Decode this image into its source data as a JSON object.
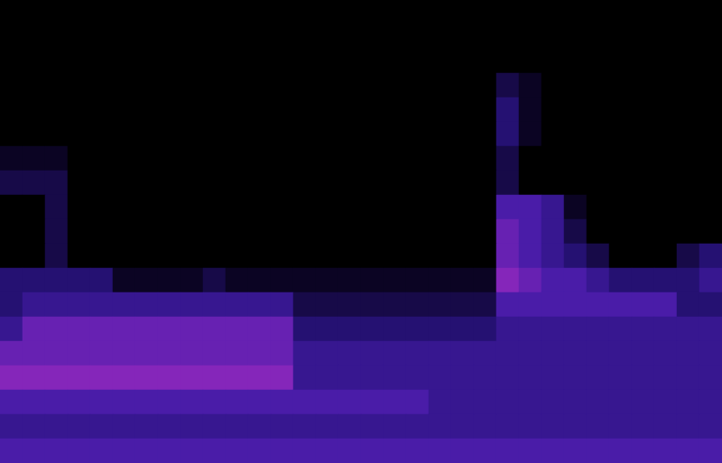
{
  "chart_data": {
    "type": "heatmap",
    "tick_labels": false,
    "grid": false,
    "zlim": [
      0,
      10
    ],
    "cells": [
      [
        0,
        0,
        0,
        0,
        0,
        0,
        0,
        0,
        0,
        0,
        0,
        0,
        0,
        0,
        0,
        0,
        0,
        0,
        0,
        0,
        0,
        0,
        0,
        0,
        0,
        0,
        0,
        0,
        0,
        0,
        0,
        0
      ],
      [
        0,
        0,
        0,
        0,
        0,
        0,
        0,
        0,
        0,
        0,
        0,
        0,
        0,
        0,
        0,
        0,
        0,
        0,
        0,
        0,
        0,
        0,
        0,
        0,
        0,
        0,
        0,
        0,
        0,
        0,
        0,
        0
      ],
      [
        0,
        0,
        0,
        0,
        0,
        0,
        0,
        0,
        0,
        0,
        0,
        0,
        0,
        0,
        0,
        0,
        0,
        0,
        0,
        0,
        0,
        0,
        0,
        0,
        0,
        0,
        0,
        0,
        0,
        0,
        0,
        0
      ],
      [
        0,
        0,
        0,
        0,
        0,
        0,
        0,
        0,
        0,
        0,
        0,
        0,
        0,
        0,
        0,
        0,
        0,
        0,
        0,
        0,
        0,
        0,
        2,
        1,
        0,
        0,
        0,
        0,
        0,
        0,
        0,
        0
      ],
      [
        0,
        0,
        0,
        0,
        0,
        0,
        0,
        0,
        0,
        0,
        0,
        0,
        0,
        0,
        0,
        0,
        0,
        0,
        0,
        0,
        0,
        0,
        3,
        1,
        0,
        0,
        0,
        0,
        0,
        0,
        0,
        0
      ],
      [
        0,
        0,
        0,
        0,
        0,
        0,
        0,
        0,
        0,
        0,
        0,
        0,
        0,
        0,
        0,
        0,
        0,
        0,
        0,
        0,
        0,
        0,
        3,
        1,
        0,
        0,
        0,
        0,
        0,
        0,
        0,
        0
      ],
      [
        1,
        1,
        1,
        0,
        0,
        0,
        0,
        0,
        0,
        0,
        0,
        0,
        0,
        0,
        0,
        0,
        0,
        0,
        0,
        0,
        0,
        0,
        2,
        0,
        0,
        0,
        0,
        0,
        0,
        0,
        0,
        0
      ],
      [
        2,
        2,
        2,
        0,
        0,
        0,
        0,
        0,
        0,
        0,
        0,
        0,
        0,
        0,
        0,
        0,
        0,
        0,
        0,
        0,
        0,
        0,
        2,
        0,
        0,
        0,
        0,
        0,
        0,
        0,
        0,
        0
      ],
      [
        0,
        0,
        2,
        0,
        0,
        0,
        0,
        0,
        0,
        0,
        0,
        0,
        0,
        0,
        0,
        0,
        0,
        0,
        0,
        0,
        0,
        0,
        5,
        5,
        4,
        1,
        0,
        0,
        0,
        0,
        0,
        0
      ],
      [
        0,
        0,
        2,
        0,
        0,
        0,
        0,
        0,
        0,
        0,
        0,
        0,
        0,
        0,
        0,
        0,
        0,
        0,
        0,
        0,
        0,
        0,
        6,
        5,
        4,
        2,
        0,
        0,
        0,
        0,
        0,
        0
      ],
      [
        0,
        0,
        2,
        0,
        0,
        0,
        0,
        0,
        0,
        0,
        0,
        0,
        0,
        0,
        0,
        0,
        0,
        0,
        0,
        0,
        0,
        0,
        6,
        5,
        4,
        3,
        2,
        0,
        0,
        0,
        2,
        3
      ],
      [
        3,
        3,
        3,
        3,
        3,
        1,
        1,
        1,
        1,
        2,
        1,
        1,
        1,
        1,
        1,
        1,
        1,
        1,
        1,
        1,
        1,
        1,
        7,
        6,
        5,
        5,
        4,
        3,
        3,
        3,
        3,
        4
      ],
      [
        3,
        4,
        4,
        4,
        4,
        4,
        4,
        4,
        4,
        4,
        4,
        4,
        4,
        2,
        2,
        2,
        2,
        2,
        2,
        2,
        2,
        2,
        5,
        5,
        5,
        5,
        5,
        5,
        5,
        5,
        3,
        3
      ],
      [
        4,
        6,
        6,
        6,
        6,
        6,
        6,
        6,
        6,
        6,
        6,
        6,
        6,
        3,
        3,
        3,
        3,
        3,
        3,
        3,
        3,
        3,
        4,
        4,
        4,
        4,
        4,
        4,
        4,
        4,
        4,
        4
      ],
      [
        6,
        6,
        6,
        6,
        6,
        6,
        6,
        6,
        6,
        6,
        6,
        6,
        6,
        4,
        4,
        4,
        4,
        4,
        4,
        4,
        4,
        4,
        4,
        4,
        4,
        4,
        4,
        4,
        4,
        4,
        4,
        4
      ],
      [
        7,
        7,
        7,
        7,
        7,
        7,
        7,
        7,
        7,
        7,
        7,
        7,
        7,
        4,
        4,
        4,
        4,
        4,
        4,
        4,
        4,
        4,
        4,
        4,
        4,
        4,
        4,
        4,
        4,
        4,
        4,
        4
      ],
      [
        5,
        5,
        5,
        5,
        5,
        5,
        5,
        5,
        5,
        5,
        5,
        5,
        5,
        5,
        5,
        5,
        5,
        5,
        5,
        4,
        4,
        4,
        4,
        4,
        4,
        4,
        4,
        4,
        4,
        4,
        4,
        4
      ],
      [
        4,
        4,
        4,
        4,
        4,
        4,
        4,
        4,
        4,
        4,
        4,
        4,
        4,
        4,
        4,
        4,
        4,
        4,
        4,
        4,
        4,
        4,
        4,
        4,
        4,
        4,
        4,
        4,
        4,
        4,
        4,
        4
      ],
      [
        5,
        5,
        5,
        5,
        5,
        5,
        5,
        5,
        5,
        5,
        5,
        5,
        5,
        5,
        5,
        5,
        5,
        5,
        5,
        5,
        5,
        5,
        5,
        5,
        5,
        5,
        5,
        5,
        5,
        5,
        5,
        5
      ]
    ]
  }
}
